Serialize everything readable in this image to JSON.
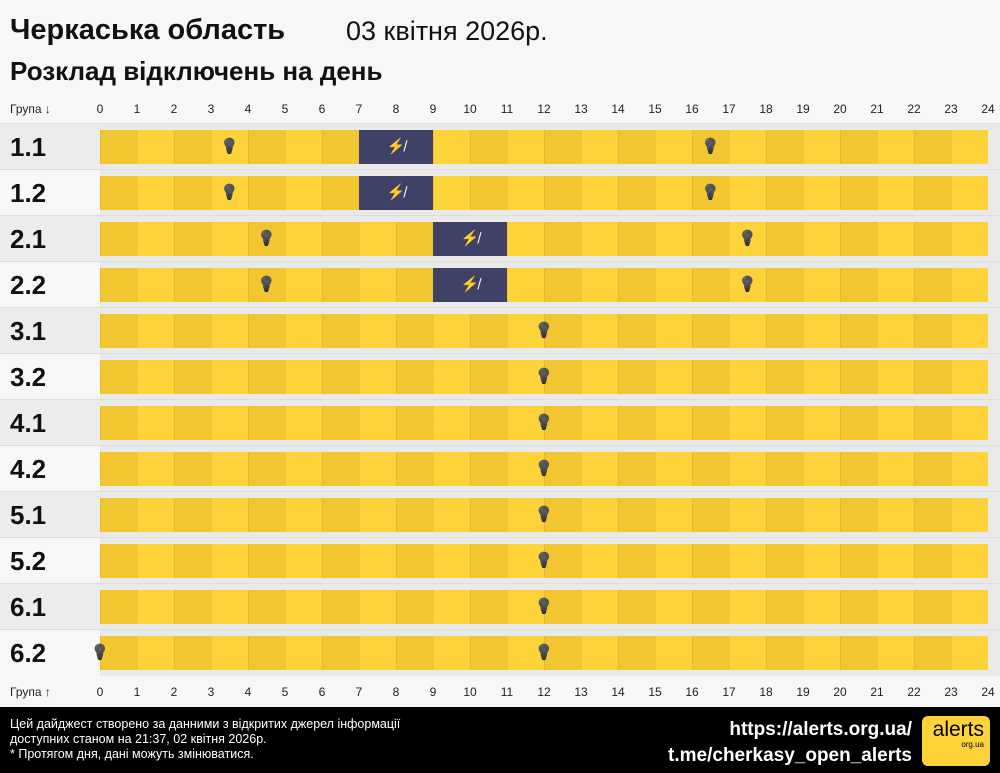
{
  "header": {
    "region": "Черкаська область",
    "date": "03 квітня 2026р.",
    "subtitle": "Розклад відключень на день"
  },
  "axis": {
    "top_label": "Група ↓",
    "bottom_label": "Група ↑",
    "hours": [
      "0",
      "1",
      "2",
      "3",
      "4",
      "5",
      "6",
      "7",
      "8",
      "9",
      "10",
      "11",
      "12",
      "13",
      "14",
      "15",
      "16",
      "17",
      "18",
      "19",
      "20",
      "21",
      "22",
      "23",
      "24"
    ]
  },
  "colors": {
    "on_dark": "#f2c631",
    "on_light": "#fdd33a",
    "outage": "#3f4266"
  },
  "groups": [
    {
      "name": "1.1",
      "outages": [
        [
          7,
          9
        ]
      ],
      "power_on_marks": [
        3.5,
        16.5
      ]
    },
    {
      "name": "1.2",
      "outages": [
        [
          7,
          9
        ]
      ],
      "power_on_marks": [
        3.5,
        16.5
      ]
    },
    {
      "name": "2.1",
      "outages": [
        [
          9,
          11
        ]
      ],
      "power_on_marks": [
        4.5,
        17.5
      ]
    },
    {
      "name": "2.2",
      "outages": [
        [
          9,
          11
        ]
      ],
      "power_on_marks": [
        4.5,
        17.5
      ]
    },
    {
      "name": "3.1",
      "outages": [],
      "power_on_marks": [
        12
      ]
    },
    {
      "name": "3.2",
      "outages": [],
      "power_on_marks": [
        12
      ]
    },
    {
      "name": "4.1",
      "outages": [],
      "power_on_marks": [
        12
      ]
    },
    {
      "name": "4.2",
      "outages": [],
      "power_on_marks": [
        12
      ]
    },
    {
      "name": "5.1",
      "outages": [],
      "power_on_marks": [
        12
      ]
    },
    {
      "name": "5.2",
      "outages": [],
      "power_on_marks": [
        12
      ]
    },
    {
      "name": "6.1",
      "outages": [],
      "power_on_marks": [
        12
      ]
    },
    {
      "name": "6.2",
      "outages": [],
      "power_on_marks": [
        0,
        12
      ]
    }
  ],
  "footer": {
    "note1": "Цей дайджест створено за данними з відкритих джерел інформації",
    "note2": "доступних станом на 21:37, 02 квітня 2026р.",
    "note3": "* Протягом дня, дані можуть змінюватися.",
    "link1": "https://alerts.org.ua/",
    "link2": "t.me/cherkasy_open_alerts",
    "logo_text": "alerts",
    "logo_sub": "org.ua"
  }
}
